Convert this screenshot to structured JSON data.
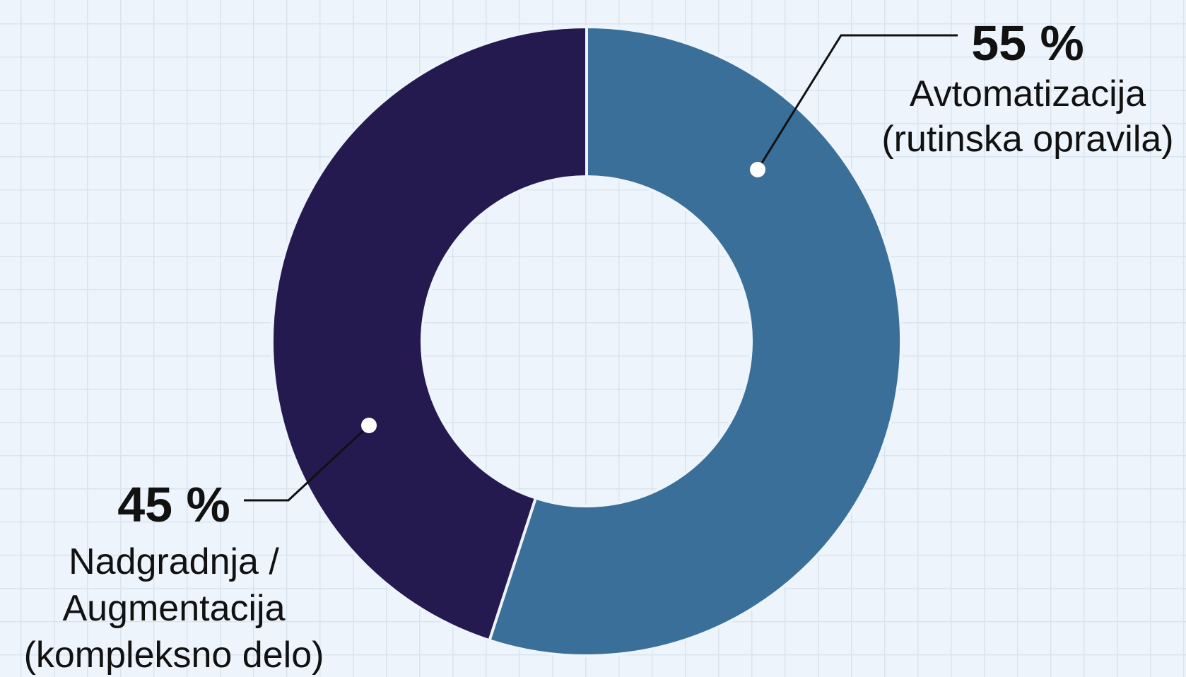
{
  "chart_data": {
    "type": "pie",
    "donut": true,
    "slices": [
      {
        "value": 45,
        "value_label": "45 %",
        "label_lines": [
          "Nadgradnja /",
          "Augmentacija",
          "(kompleksno delo)"
        ],
        "color": "#241a4f"
      },
      {
        "value": 55,
        "value_label": "55 %",
        "label_lines": [
          "Avtomatizacija",
          "(rutinska opravila)"
        ],
        "color": "#3a6f99"
      }
    ],
    "legend": "none",
    "grid": true
  }
}
